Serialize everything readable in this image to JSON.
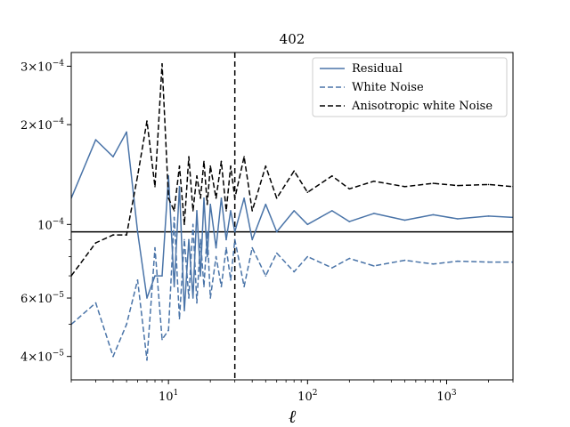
{
  "chart_data": {
    "type": "line",
    "title": "402",
    "xlabel": "ℓ",
    "ylabel": "",
    "xscale": "log",
    "yscale": "log",
    "xlim": [
      2,
      3000
    ],
    "ylim": [
      3.4e-05,
      0.00033
    ],
    "x_ticks": [
      {
        "value": 10,
        "base": "10",
        "exp": "1"
      },
      {
        "value": 100,
        "base": "10",
        "exp": "2"
      },
      {
        "value": 1000,
        "base": "10",
        "exp": "3"
      }
    ],
    "y_ticks": [
      {
        "value": 4e-05,
        "mant": "4",
        "base": "10",
        "exp": "−5"
      },
      {
        "value": 6e-05,
        "mant": "6",
        "base": "10",
        "exp": "−5"
      },
      {
        "value": 0.0001,
        "mant": "",
        "base": "10",
        "exp": "−4"
      },
      {
        "value": 0.0002,
        "mant": "2",
        "base": "10",
        "exp": "−4"
      },
      {
        "value": 0.0003,
        "mant": "3",
        "base": "10",
        "exp": "−4"
      }
    ],
    "reference_lines": {
      "horizontal_y": 9.5e-05,
      "vertical_x": 30
    },
    "legend_position": "top-right",
    "series": [
      {
        "name": "Residual",
        "color": "#4a74a8",
        "dash": "solid",
        "x": [
          2,
          3,
          4,
          5,
          6,
          7,
          8,
          9,
          10,
          11,
          12,
          13,
          14,
          15,
          16,
          17,
          18,
          19,
          20,
          22,
          24,
          26,
          28,
          30,
          35,
          40,
          50,
          60,
          80,
          100,
          150,
          200,
          300,
          500,
          800,
          1200,
          2000,
          3000
        ],
        "y": [
          0.00012,
          0.00018,
          0.00016,
          0.00019,
          9.5e-05,
          6e-05,
          7e-05,
          7e-05,
          0.00014,
          6.5e-05,
          0.00013,
          5.5e-05,
          9e-05,
          6e-05,
          0.00011,
          7e-05,
          0.00012,
          8e-05,
          0.000115,
          8.5e-05,
          0.00012,
          9e-05,
          0.00011,
          9.5e-05,
          0.00012,
          9e-05,
          0.000115,
          9.5e-05,
          0.00011,
          0.0001,
          0.00011,
          0.000102,
          0.000108,
          0.000103,
          0.000107,
          0.000104,
          0.000106,
          0.000105
        ]
      },
      {
        "name": "White Noise",
        "color": "#4a74a8",
        "dash": "dashed",
        "x": [
          2,
          3,
          4,
          5,
          6,
          7,
          8,
          9,
          10,
          11,
          12,
          13,
          14,
          15,
          16,
          17,
          18,
          19,
          20,
          22,
          24,
          26,
          28,
          30,
          35,
          40,
          50,
          60,
          80,
          100,
          150,
          200,
          300,
          500,
          800,
          1200,
          2000,
          3000
        ],
        "y": [
          5e-05,
          5.8e-05,
          4e-05,
          5e-05,
          6.8e-05,
          3.9e-05,
          8.5e-05,
          4.5e-05,
          4.8e-05,
          0.000105,
          5.2e-05,
          9e-05,
          6e-05,
          0.0001,
          5.8e-05,
          9e-05,
          6.5e-05,
          9.5e-05,
          6e-05,
          8e-05,
          6.5e-05,
          8.5e-05,
          6.8e-05,
          9e-05,
          6.5e-05,
          8.5e-05,
          7e-05,
          8.2e-05,
          7.2e-05,
          8e-05,
          7.4e-05,
          7.9e-05,
          7.5e-05,
          7.8e-05,
          7.6e-05,
          7.75e-05,
          7.7e-05,
          7.7e-05
        ]
      },
      {
        "name": "Anisotropic white Noise",
        "color": "#000000",
        "dash": "dashed",
        "x": [
          2,
          3,
          4,
          5,
          6,
          7,
          8,
          9,
          10,
          11,
          12,
          13,
          14,
          15,
          16,
          17,
          18,
          19,
          20,
          22,
          24,
          26,
          28,
          30,
          35,
          40,
          50,
          60,
          80,
          100,
          150,
          200,
          300,
          500,
          800,
          1200,
          2000,
          3000
        ],
        "y": [
          7e-05,
          8.8e-05,
          9.3e-05,
          9.3e-05,
          0.00014,
          0.000205,
          0.00013,
          0.000305,
          0.00012,
          0.00011,
          0.00015,
          0.0001,
          0.00016,
          0.00011,
          0.00014,
          0.00012,
          0.000155,
          0.000115,
          0.00015,
          0.00012,
          0.000155,
          0.00011,
          0.00015,
          0.00012,
          0.00016,
          0.00011,
          0.00015,
          0.00012,
          0.000145,
          0.000125,
          0.00014,
          0.000128,
          0.000135,
          0.00013,
          0.000133,
          0.000131,
          0.000132,
          0.00013
        ]
      }
    ]
  }
}
